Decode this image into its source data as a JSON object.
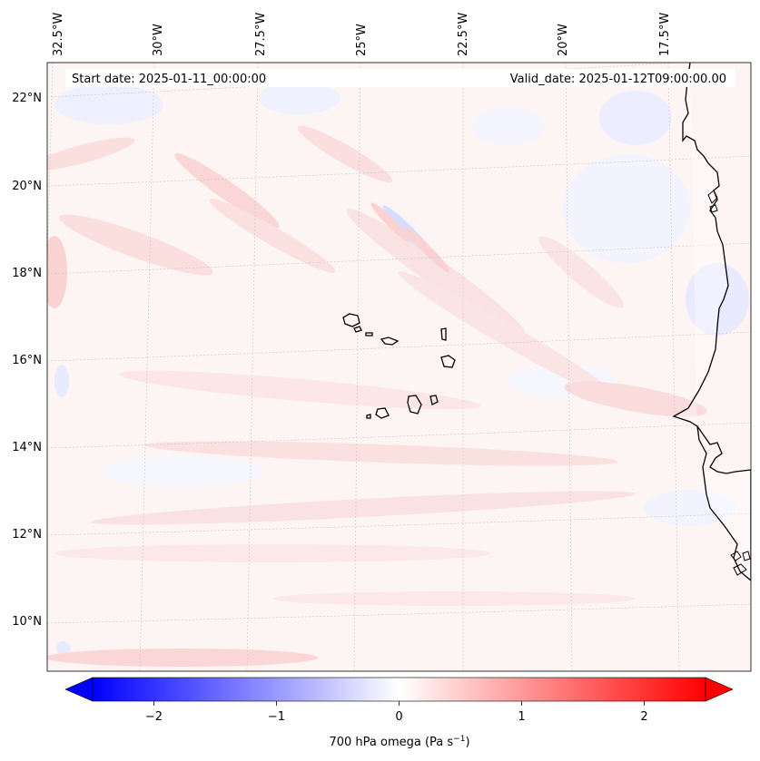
{
  "map": {
    "lon_labels": [
      "32.5°W",
      "30°W",
      "27.5°W",
      "25°W",
      "22.5°W",
      "20°W",
      "17.5°W"
    ],
    "lat_labels": [
      "22°N",
      "20°N",
      "18°N",
      "16°N",
      "14°N",
      "12°N",
      "10°N"
    ],
    "start_date": "Start date: 2025-01-11_00:00:00",
    "valid_date": "Valid_date: 2025-01-12T09:00:00.00",
    "field": "700 hPa omega",
    "gridlines": true
  },
  "colorbar": {
    "label_main": "700 hPa omega (Pa s",
    "label_exp": "−1",
    "label_close": ")",
    "ticks": [
      "−2",
      "−1",
      "0",
      "1",
      "2"
    ],
    "tick_values": [
      -2,
      -1,
      0,
      1,
      2
    ],
    "vmin": -2.5,
    "vmax": 2.5,
    "colormap": "bwr",
    "low_color": "#0000ff",
    "mid_color": "#ffffff",
    "high_color": "#ff0000",
    "extend": "both"
  }
}
